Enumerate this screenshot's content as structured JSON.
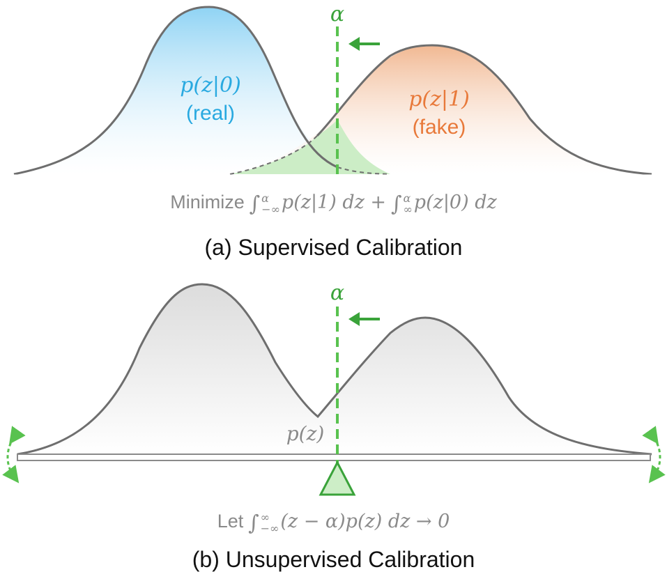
{
  "panel_a": {
    "alpha_label": "α",
    "real_formula": "p(z|0)",
    "real_label": "(real)",
    "fake_formula": "p(z|1)",
    "fake_label": "(fake)",
    "objective_word": "Minimize",
    "objective_term1": "p(z|1) dz +",
    "objective_term2": "p(z|0) dz",
    "int1_upper": "α",
    "int1_lower": "−∞",
    "int2_upper": "α",
    "int2_lower": "∞",
    "caption": "(a) Supervised Calibration"
  },
  "panel_b": {
    "alpha_label": "α",
    "density_label": "p(z)",
    "condition_word": "Let",
    "condition_expr": "(z − α)p(z) dz → 0",
    "int_upper": "∞",
    "int_lower": "−∞",
    "caption": "(b) Unsupervised Calibration"
  },
  "colors": {
    "real": "#29a9e0",
    "fake": "#e8793a",
    "threshold": "#59c24f",
    "curve": "#6e6e6e",
    "text_gray": "#8a8a8a"
  }
}
